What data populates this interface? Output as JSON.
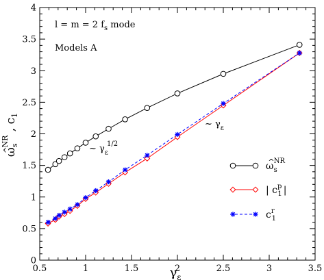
{
  "chart_data": {
    "type": "line",
    "title": "",
    "xlabel": "γ_ε",
    "ylabel": "ω̂_s^NR , c_1",
    "xlim": [
      0.5,
      3.5
    ],
    "ylim": [
      0,
      4
    ],
    "xticks": [
      0.5,
      1,
      1.5,
      2,
      2.5,
      3,
      3.5
    ],
    "xtick_labels": [
      "0.5",
      "1",
      "1.5",
      "2",
      "2.5",
      "3",
      "3.5"
    ],
    "yticks": [
      0,
      0.5,
      1,
      1.5,
      2,
      2.5,
      3,
      3.5,
      4
    ],
    "ytick_labels": [
      "0",
      "0.5",
      "1",
      "1.5",
      "2",
      "2.5",
      "3",
      "3.5",
      "4"
    ],
    "grid": false,
    "legend_position": "bottom-right",
    "annotations": [
      {
        "id": "mode",
        "text": "l = m = 2   f_s  mode"
      },
      {
        "id": "models",
        "text": "Models A"
      },
      {
        "id": "half",
        "text": "~ γ_ε^1/2"
      },
      {
        "id": "linear",
        "text": "~ γ_ε"
      }
    ],
    "series": [
      {
        "name": "ω̂_s^NR",
        "color": "#000000",
        "marker": "circle",
        "line": "solid",
        "x": [
          0.59,
          0.67,
          0.71,
          0.77,
          0.83,
          0.91,
          1.0,
          1.11,
          1.25,
          1.43,
          1.67,
          2.0,
          2.5,
          3.33
        ],
        "y": [
          1.43,
          1.52,
          1.57,
          1.63,
          1.69,
          1.77,
          1.86,
          1.96,
          2.08,
          2.23,
          2.41,
          2.64,
          2.95,
          3.41
        ]
      },
      {
        "name": "|c_1^p|",
        "color": "#ff0000",
        "marker": "diamond",
        "line": "solid",
        "x": [
          0.59,
          0.67,
          0.71,
          0.77,
          0.83,
          0.91,
          1.0,
          1.11,
          1.25,
          1.43,
          1.67,
          2.0,
          2.5,
          3.33
        ],
        "y": [
          0.58,
          0.64,
          0.69,
          0.73,
          0.78,
          0.86,
          0.97,
          1.07,
          1.21,
          1.39,
          1.61,
          1.95,
          2.45,
          3.28
        ]
      },
      {
        "name": "c_1^r",
        "color": "#0000ff",
        "marker": "asterisk",
        "line": "dashed",
        "x": [
          0.59,
          0.67,
          0.71,
          0.77,
          0.83,
          0.91,
          1.0,
          1.11,
          1.25,
          1.43,
          1.67,
          2.0,
          2.5,
          3.33
        ],
        "y": [
          0.6,
          0.66,
          0.71,
          0.76,
          0.81,
          0.88,
          0.99,
          1.1,
          1.24,
          1.43,
          1.66,
          1.99,
          2.48,
          3.28
        ]
      }
    ]
  }
}
